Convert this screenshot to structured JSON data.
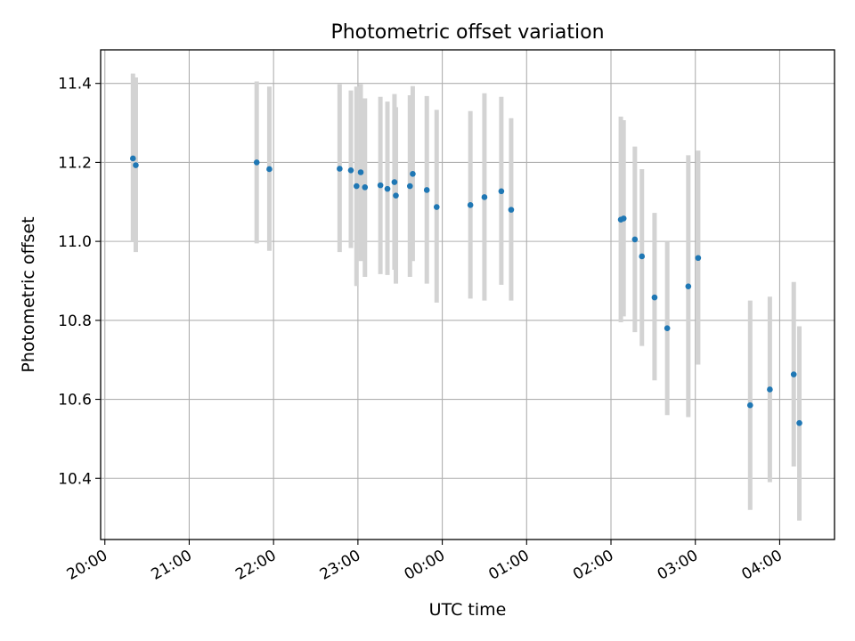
{
  "chart_data": {
    "type": "scatter",
    "title": "Photometric offset variation",
    "xlabel": "UTC time",
    "ylabel": "Photometric offset",
    "x_ticks": [
      "20:00",
      "21:00",
      "22:00",
      "23:00",
      "00:00",
      "01:00",
      "02:00",
      "03:00",
      "04:00"
    ],
    "y_ticks": [
      "10.4",
      "10.6",
      "10.8",
      "11.0",
      "11.2",
      "11.4"
    ],
    "xlim_hours": [
      19.95,
      28.65
    ],
    "ylim": [
      10.245,
      11.485
    ],
    "grid": true,
    "error_bar_color": "#d3d3d3",
    "point_color": "#1f77b4",
    "points": [
      {
        "t": "20:20",
        "y": 11.21,
        "lo": 11.0,
        "hi": 11.425
      },
      {
        "t": "20:22",
        "y": 11.193,
        "lo": 10.973,
        "hi": 11.415
      },
      {
        "t": "21:48",
        "y": 11.2,
        "lo": 10.995,
        "hi": 11.405
      },
      {
        "t": "21:57",
        "y": 11.183,
        "lo": 10.976,
        "hi": 11.392
      },
      {
        "t": "22:47",
        "y": 11.184,
        "lo": 10.973,
        "hi": 11.398
      },
      {
        "t": "22:55",
        "y": 11.18,
        "lo": 10.983,
        "hi": 11.382
      },
      {
        "t": "22:59",
        "y": 11.14,
        "lo": 10.887,
        "hi": 11.392
      },
      {
        "t": "23:02",
        "y": 11.175,
        "lo": 10.95,
        "hi": 11.398
      },
      {
        "t": "23:05",
        "y": 11.137,
        "lo": 10.91,
        "hi": 11.362
      },
      {
        "t": "23:16",
        "y": 11.142,
        "lo": 10.917,
        "hi": 11.366
      },
      {
        "t": "23:21",
        "y": 11.133,
        "lo": 10.915,
        "hi": 11.354
      },
      {
        "t": "23:26",
        "y": 11.15,
        "lo": 10.928,
        "hi": 11.373
      },
      {
        "t": "23:27",
        "y": 11.116,
        "lo": 10.893,
        "hi": 11.34
      },
      {
        "t": "23:37",
        "y": 11.14,
        "lo": 10.91,
        "hi": 11.37
      },
      {
        "t": "23:39",
        "y": 11.171,
        "lo": 10.95,
        "hi": 11.393
      },
      {
        "t": "23:49",
        "y": 11.13,
        "lo": 10.893,
        "hi": 11.368
      },
      {
        "t": "23:56",
        "y": 11.087,
        "lo": 10.845,
        "hi": 11.333
      },
      {
        "t": "00:20",
        "y": 11.092,
        "lo": 10.855,
        "hi": 11.33
      },
      {
        "t": "00:30",
        "y": 11.112,
        "lo": 10.85,
        "hi": 11.375
      },
      {
        "t": "00:42",
        "y": 11.127,
        "lo": 10.89,
        "hi": 11.366
      },
      {
        "t": "00:49",
        "y": 11.08,
        "lo": 10.85,
        "hi": 11.312
      },
      {
        "t": "02:07",
        "y": 11.055,
        "lo": 10.795,
        "hi": 11.316
      },
      {
        "t": "02:09",
        "y": 11.058,
        "lo": 10.81,
        "hi": 11.307
      },
      {
        "t": "02:17",
        "y": 11.005,
        "lo": 10.77,
        "hi": 11.24
      },
      {
        "t": "02:22",
        "y": 10.962,
        "lo": 10.735,
        "hi": 11.183
      },
      {
        "t": "02:31",
        "y": 10.858,
        "lo": 10.648,
        "hi": 11.072
      },
      {
        "t": "02:40",
        "y": 10.78,
        "lo": 10.56,
        "hi": 11.0
      },
      {
        "t": "02:55",
        "y": 10.886,
        "lo": 10.555,
        "hi": 11.218
      },
      {
        "t": "03:02",
        "y": 10.958,
        "lo": 10.688,
        "hi": 11.23
      },
      {
        "t": "03:39",
        "y": 10.585,
        "lo": 10.32,
        "hi": 10.85
      },
      {
        "t": "03:53",
        "y": 10.625,
        "lo": 10.39,
        "hi": 10.86
      },
      {
        "t": "04:10",
        "y": 10.663,
        "lo": 10.43,
        "hi": 10.897
      },
      {
        "t": "04:14",
        "y": 10.54,
        "lo": 10.293,
        "hi": 10.785
      }
    ]
  }
}
